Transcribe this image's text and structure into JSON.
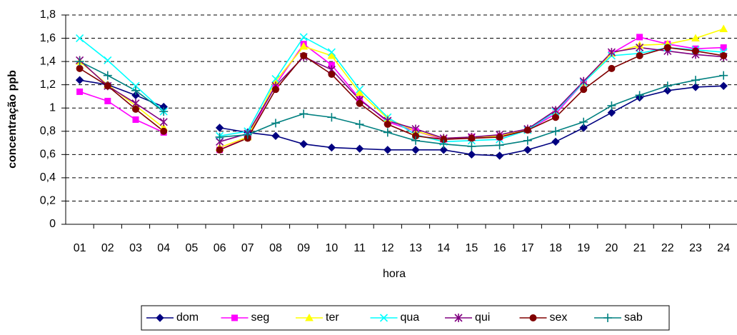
{
  "chart_data": {
    "type": "line",
    "x_label": "hora",
    "y_label": "concentração ppb",
    "categories": [
      "01",
      "02",
      "03",
      "04",
      "05",
      "06",
      "07",
      "08",
      "09",
      "10",
      "11",
      "12",
      "13",
      "14",
      "15",
      "16",
      "17",
      "18",
      "19",
      "20",
      "21",
      "22",
      "23",
      "24"
    ],
    "ylim": [
      0,
      1.8
    ],
    "yticks": [
      0,
      {
        "value": 0.2,
        "label": "0,2"
      },
      {
        "value": 0.4,
        "label": "0,4"
      },
      {
        "value": 0.6,
        "label": "0,6"
      },
      {
        "value": 0.8,
        "label": "0,8"
      },
      1,
      {
        "value": 1.2,
        "label": "1,2"
      },
      {
        "value": 1.4,
        "label": "1,4"
      },
      {
        "value": 1.6,
        "label": "1,6"
      },
      {
        "value": 1.8,
        "label": "1,8"
      }
    ],
    "grid": true,
    "legend": "bottom",
    "series": [
      {
        "name": "dom",
        "color": "#000080",
        "marker": "diamond",
        "values": [
          1.24,
          1.2,
          1.11,
          1.01,
          null,
          0.83,
          0.79,
          0.76,
          0.69,
          0.66,
          0.65,
          0.64,
          0.64,
          0.64,
          0.6,
          0.59,
          0.64,
          0.71,
          0.83,
          0.96,
          1.09,
          1.15,
          1.18,
          1.19
        ]
      },
      {
        "name": "seg",
        "color": "#ff00ff",
        "marker": "square",
        "values": [
          1.14,
          1.06,
          0.9,
          0.79,
          null,
          0.64,
          0.75,
          1.2,
          1.55,
          1.37,
          1.08,
          0.88,
          0.8,
          0.73,
          0.75,
          0.75,
          0.81,
          0.95,
          1.22,
          1.47,
          1.61,
          1.55,
          1.51,
          1.52
        ]
      },
      {
        "name": "ter",
        "color": "#ffff00",
        "marker": "triangle",
        "values": [
          1.4,
          1.2,
          1.02,
          0.83,
          null,
          0.66,
          0.75,
          1.23,
          1.53,
          1.45,
          1.13,
          0.91,
          0.8,
          0.74,
          0.75,
          0.76,
          0.81,
          0.97,
          1.22,
          1.47,
          1.54,
          1.55,
          1.6,
          1.68
        ]
      },
      {
        "name": "qua",
        "color": "#00ffff",
        "marker": "x",
        "values": [
          1.6,
          1.41,
          1.19,
          0.97,
          null,
          0.76,
          0.8,
          1.25,
          1.61,
          1.48,
          1.16,
          0.92,
          0.77,
          0.71,
          0.72,
          0.73,
          0.81,
          0.97,
          1.22,
          1.45,
          1.47,
          1.52,
          1.5,
          1.48
        ]
      },
      {
        "name": "qui",
        "color": "#800080",
        "marker": "star",
        "values": [
          1.41,
          1.19,
          1.04,
          0.88,
          null,
          0.71,
          0.78,
          1.19,
          1.44,
          1.33,
          1.07,
          0.89,
          0.82,
          0.74,
          0.75,
          0.77,
          0.82,
          0.98,
          1.23,
          1.48,
          1.52,
          1.49,
          1.46,
          1.44
        ]
      },
      {
        "name": "sex",
        "color": "#800000",
        "marker": "circle",
        "values": [
          1.34,
          1.19,
          0.99,
          0.8,
          null,
          0.64,
          0.74,
          1.16,
          1.45,
          1.29,
          1.04,
          0.86,
          0.76,
          0.73,
          0.74,
          0.75,
          0.81,
          0.92,
          1.16,
          1.34,
          1.45,
          1.52,
          1.49,
          1.45
        ]
      },
      {
        "name": "sab",
        "color": "#008080",
        "marker": "plus",
        "values": [
          1.4,
          1.28,
          1.15,
          0.97,
          null,
          0.75,
          0.77,
          0.87,
          0.95,
          0.92,
          0.86,
          0.79,
          0.72,
          0.69,
          0.67,
          0.68,
          0.72,
          0.8,
          0.88,
          1.02,
          1.11,
          1.19,
          1.24,
          1.28
        ]
      }
    ]
  }
}
